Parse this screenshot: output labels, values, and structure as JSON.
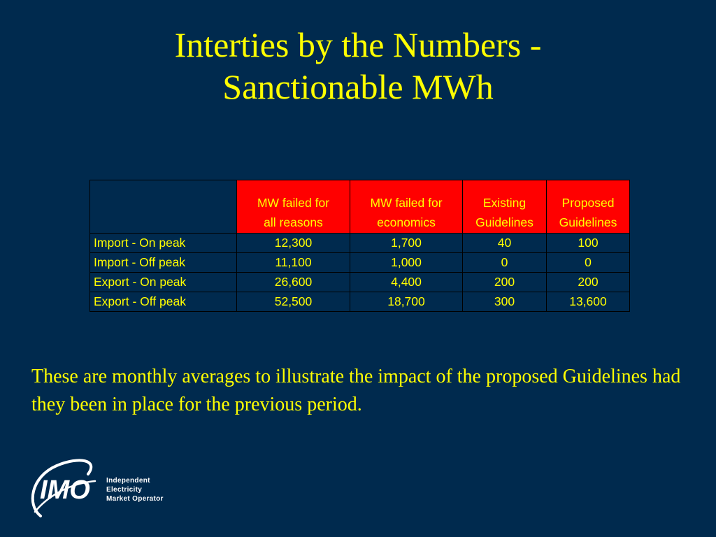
{
  "title": {
    "line1": "Interties by the Numbers -",
    "line2": "Sanctionable MWh"
  },
  "table": {
    "headers": [
      {
        "line1": "",
        "line2": ""
      },
      {
        "line1": "MW failed for",
        "line2": "all reasons"
      },
      {
        "line1": "MW failed for",
        "line2": "economics"
      },
      {
        "line1": "Existing",
        "line2": "Guidelines"
      },
      {
        "line1": "Proposed",
        "line2": "Guidelines"
      }
    ],
    "rows": [
      {
        "label": "Import - On peak",
        "values": [
          "12,300",
          "1,700",
          "40",
          "100"
        ]
      },
      {
        "label": "Import - Off peak",
        "values": [
          "11,100",
          "1,000",
          "0",
          "0"
        ]
      },
      {
        "label": "Export - On peak",
        "values": [
          "26,600",
          "4,400",
          "200",
          "200"
        ]
      },
      {
        "label": "Export - Off peak",
        "values": [
          "52,500",
          "18,700",
          "300",
          "13,600"
        ]
      }
    ]
  },
  "note": "These are monthly averages to illustrate the impact of the proposed Guidelines had they been in place for the previous period.",
  "logo": {
    "mark": "IMO",
    "tagline": [
      "Independent",
      "Electricity",
      "Market Operator"
    ]
  },
  "colors": {
    "background": "#002a4e",
    "text": "#ffff00",
    "header_fill": "#ff0000"
  }
}
